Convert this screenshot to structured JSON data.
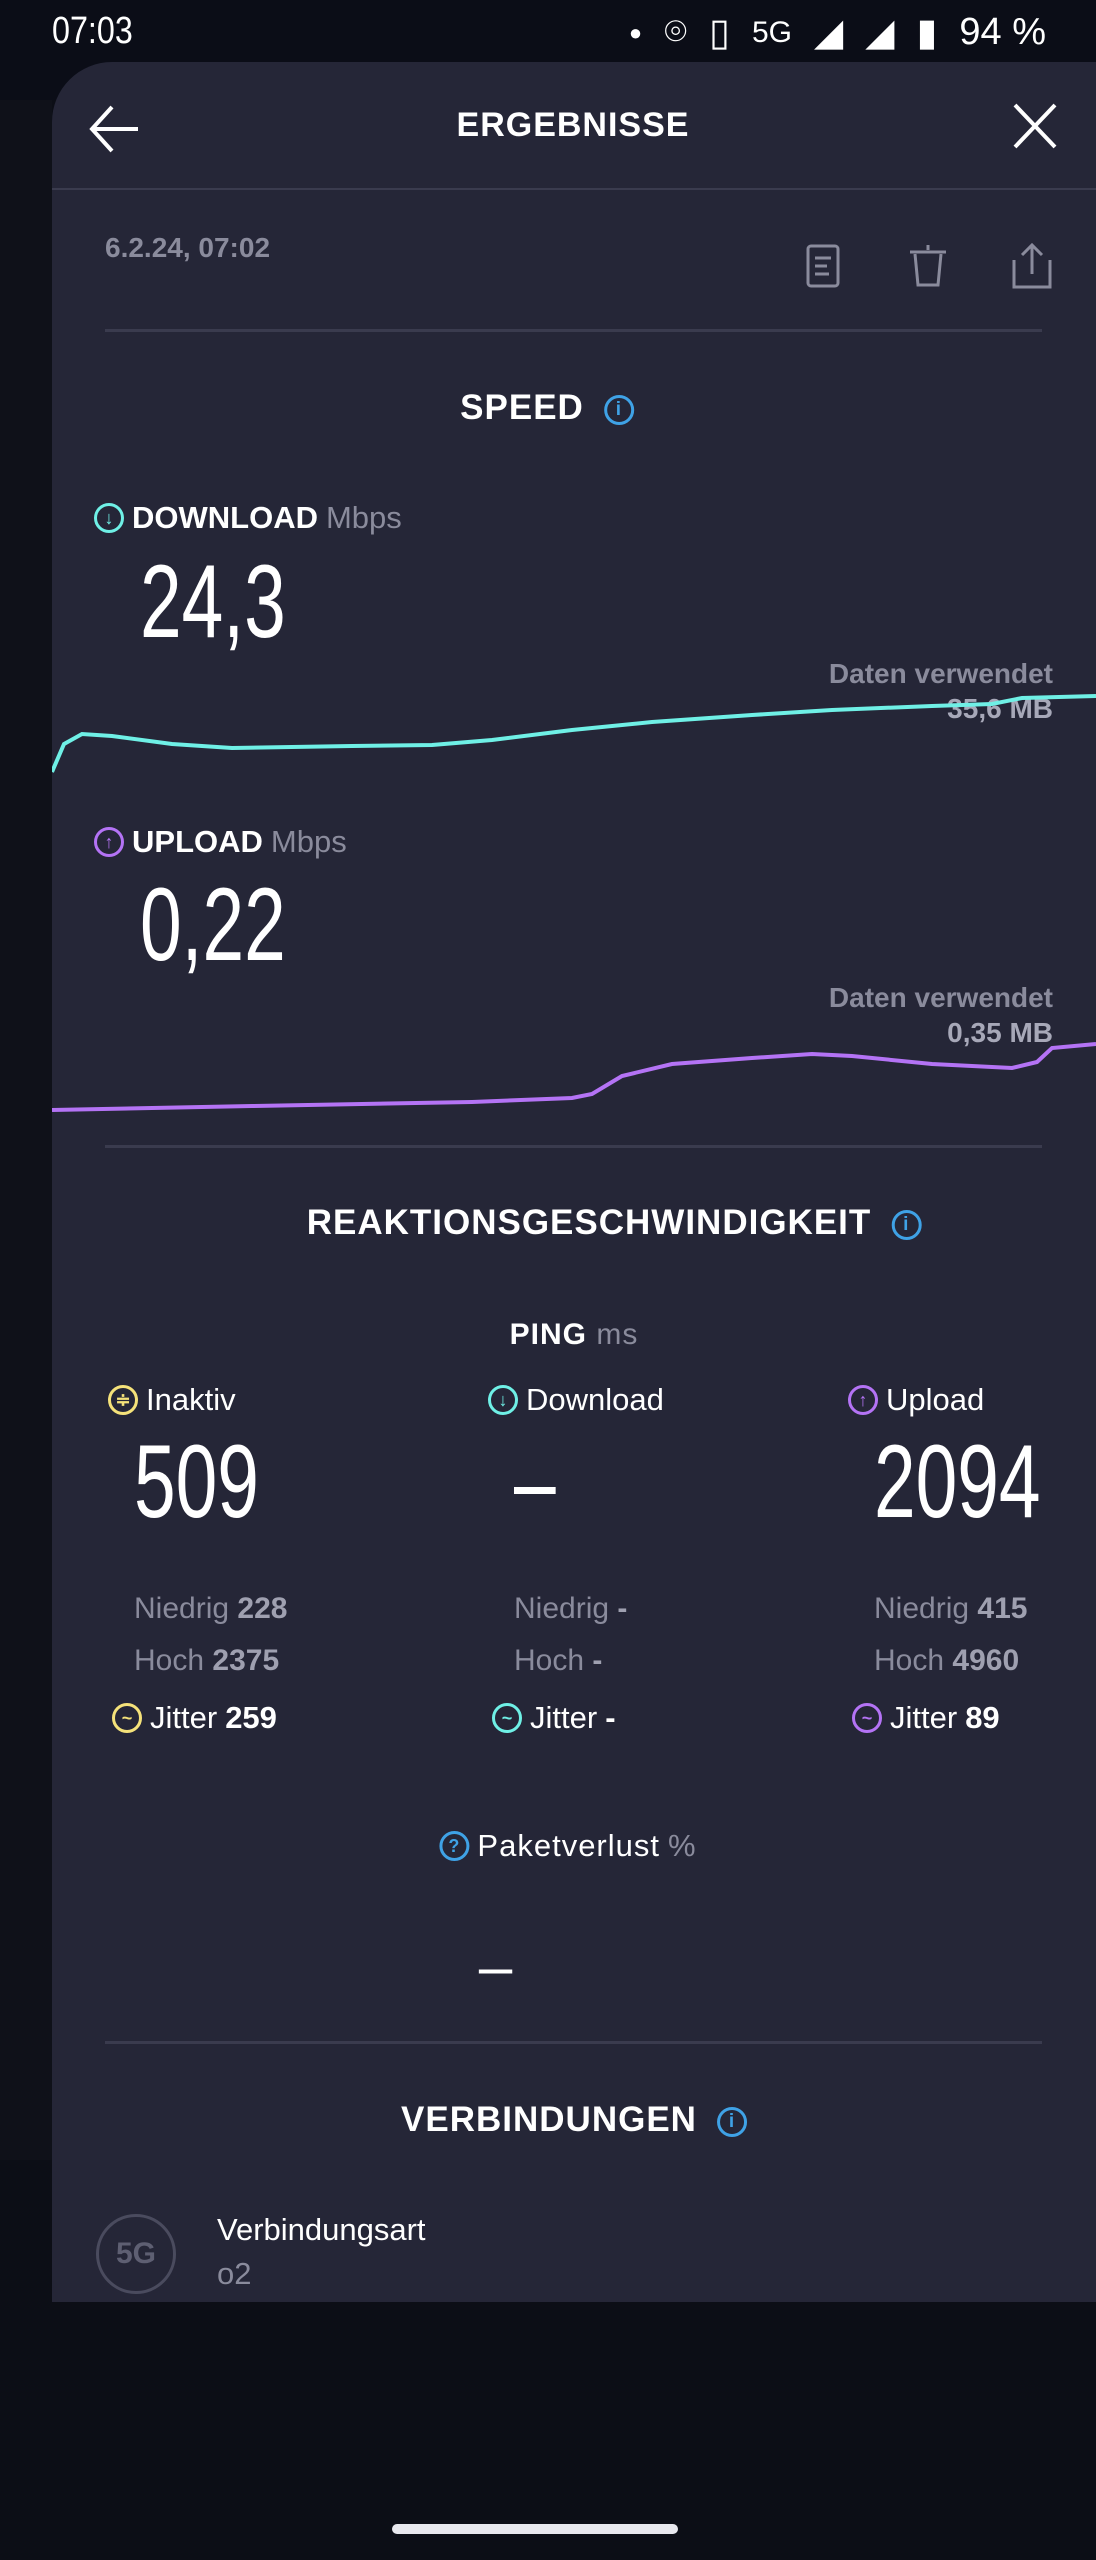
{
  "status_bar": {
    "time": "07:03",
    "network": "5G",
    "battery": "94 %"
  },
  "header": {
    "title": "ERGEBNISSE"
  },
  "result": {
    "date": "6.2.24, 07:02"
  },
  "speed": {
    "title": "SPEED",
    "download": {
      "label": "DOWNLOAD",
      "unit": "Mbps",
      "value": "24,3",
      "data_label": "Daten verwendet",
      "data_value": "35,6 MB",
      "color": "#6ff0e6"
    },
    "upload": {
      "label": "UPLOAD",
      "unit": "Mbps",
      "value": "0,22",
      "data_label": "Daten verwendet",
      "data_value": "0,35 MB",
      "color": "#b473f5"
    }
  },
  "latency": {
    "title": "REAKTIONSGESCHWINDIGKEIT",
    "ping_label": "PING",
    "ping_unit": "ms",
    "columns": [
      {
        "label": "Inaktiv",
        "value": "509",
        "low_label": "Niedrig",
        "low": "228",
        "high_label": "Hoch",
        "high": "2375",
        "jitter_label": "Jitter",
        "jitter": "259",
        "color": "#f5e27a"
      },
      {
        "label": "Download",
        "value": "–",
        "low_label": "Niedrig",
        "low": "-",
        "high_label": "Hoch",
        "high": "-",
        "jitter_label": "Jitter",
        "jitter": "-",
        "color": "#6ff0e6"
      },
      {
        "label": "Upload",
        "value": "2094",
        "low_label": "Niedrig",
        "low": "415",
        "high_label": "Hoch",
        "high": "4960",
        "jitter_label": "Jitter",
        "jitter": "89",
        "color": "#b473f5"
      }
    ],
    "packet_loss_label": "Paketverlust",
    "packet_loss_unit": "%",
    "packet_loss_value": "–"
  },
  "connections": {
    "title": "VERBINDUNGEN",
    "badge": "5G",
    "type_label": "Verbindungsart",
    "provider": "o2"
  }
}
